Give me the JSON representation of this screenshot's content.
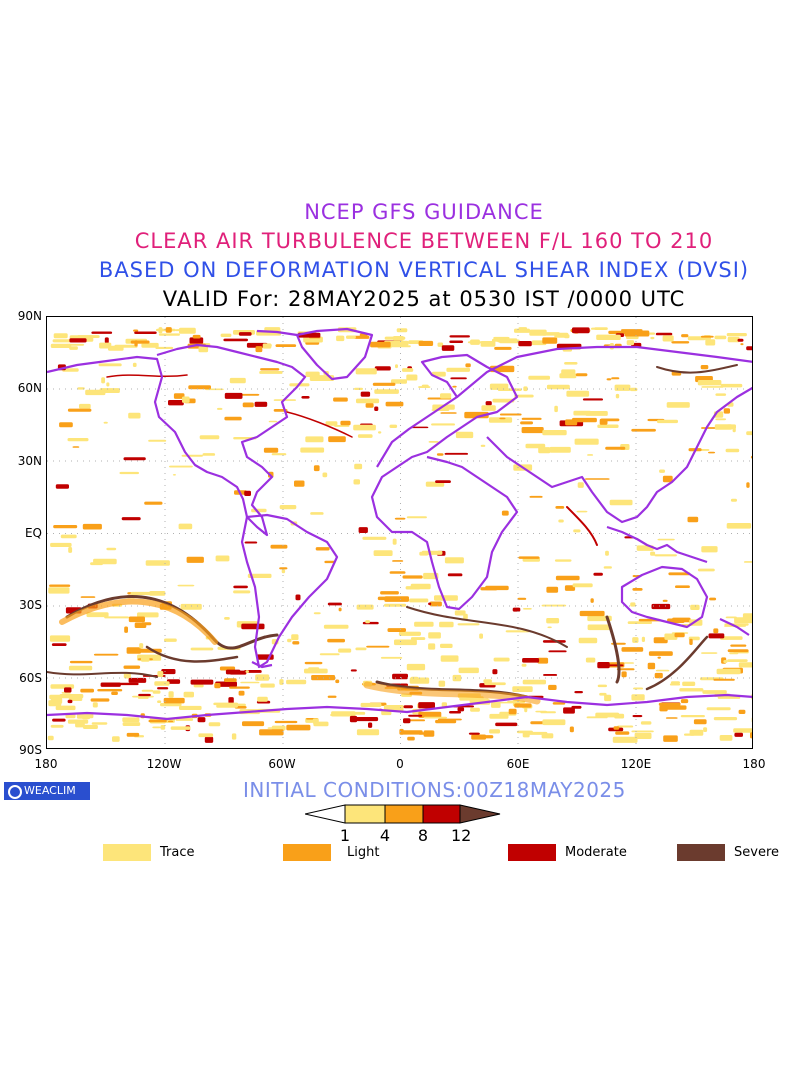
{
  "titles": {
    "line1": "NCEP GFS GUIDANCE",
    "line2": "CLEAR AIR TURBULENCE BETWEEN F/L 160 TO 210",
    "line3": "BASED ON DEFORMATION VERTICAL SHEAR INDEX (DVSI)",
    "line4": "VALID For: 28MAY2025 at 0530 IST /0000 UTC"
  },
  "axes": {
    "y_labels": [
      "90N",
      "60N",
      "30N",
      "EQ",
      "30S",
      "60S",
      "90S"
    ],
    "x_labels": [
      "180",
      "120W",
      "60W",
      "0",
      "60E",
      "120E",
      "180"
    ]
  },
  "badge": {
    "text": "WEACLIM"
  },
  "initial_conditions": "INITIAL CONDITIONS:00Z18MAY2025",
  "colorbar": {
    "ticks": [
      "1",
      "4",
      "8",
      "12"
    ],
    "colors": [
      "#ffffff",
      "#fde57a",
      "#f9a019",
      "#c00000",
      "#6b3b2e"
    ]
  },
  "legend": [
    {
      "label": "Trace",
      "color": "#fde57a"
    },
    {
      "label": "Light",
      "color": "#f9a019"
    },
    {
      "label": "Moderate",
      "color": "#c00000"
    },
    {
      "label": "Severe",
      "color": "#6b3b2e"
    }
  ],
  "colors": {
    "coastline": "#9b30e0",
    "title1": "#9b30e0",
    "title2": "#e0207a",
    "title3": "#3050e8",
    "init_conditions": "#7a8ee8",
    "badge": "#2a4fcf"
  }
}
